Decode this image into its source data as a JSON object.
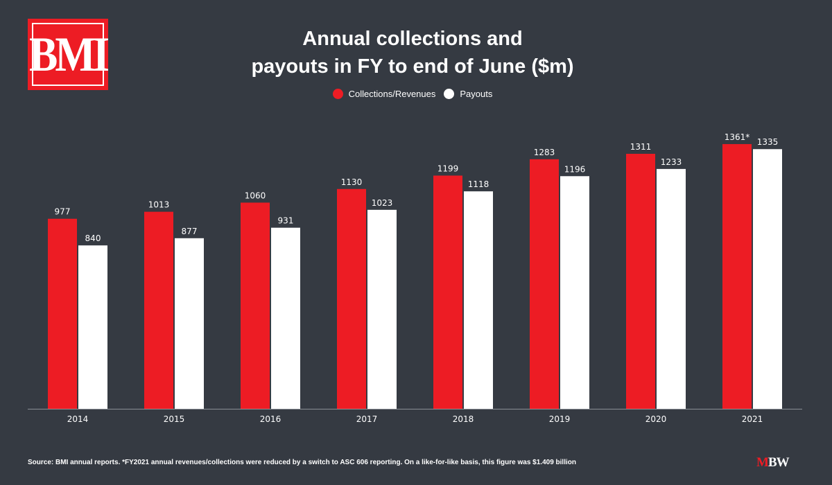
{
  "logo": {
    "text": "BMI"
  },
  "colors": {
    "background": "#353a42",
    "collections": "#ed1c24",
    "payouts": "#ffffff",
    "axis": "#8a8f96"
  },
  "chart_data": {
    "type": "bar",
    "title_lines": [
      "Annual collections and",
      "payouts in FY to end of June ($m)"
    ],
    "categories": [
      "2014",
      "2015",
      "2016",
      "2017",
      "2018",
      "2019",
      "2020",
      "2021"
    ],
    "series": [
      {
        "name": "Collections/Revenues",
        "color": "#ed1c24",
        "values": [
          977,
          1013,
          1060,
          1130,
          1199,
          1283,
          1311,
          1361
        ],
        "labels": [
          "977",
          "1013",
          "1060",
          "1130",
          "1199",
          "1283",
          "1311",
          "1361*"
        ]
      },
      {
        "name": "Payouts",
        "color": "#ffffff",
        "values": [
          840,
          877,
          931,
          1023,
          1118,
          1196,
          1233,
          1335
        ],
        "labels": [
          "840",
          "877",
          "931",
          "1023",
          "1118",
          "1196",
          "1233",
          "1335"
        ]
      }
    ],
    "ylim": [
      0,
      1400
    ],
    "grid": false,
    "legend_position": "top-center"
  },
  "footer": {
    "source": "Source: BMI annual reports. *FY2021 annual revenues/collections were reduced by a switch to ASC 606 reporting. On a like-for-like basis, this figure was $1.409 billion"
  },
  "brand": {
    "m": "M",
    "bw": "BW"
  }
}
